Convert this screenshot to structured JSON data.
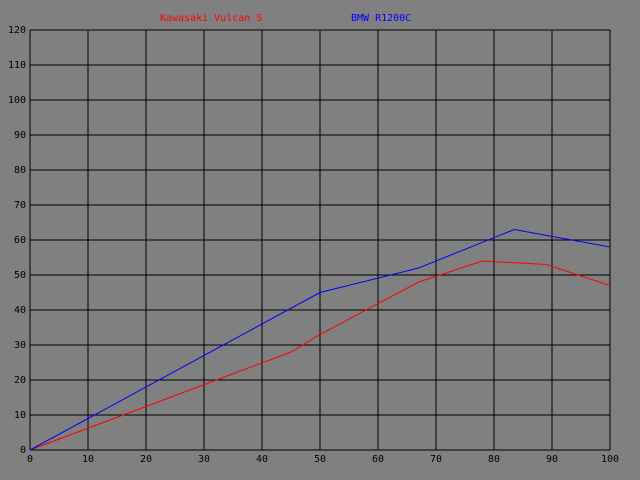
{
  "chart_data": {
    "type": "line",
    "series": [
      {
        "name": "Kawasaki Vulcan S",
        "color": "#ff0000",
        "x": [
          0,
          45,
          50,
          67,
          78,
          89,
          100
        ],
        "values": [
          0,
          28,
          33,
          48,
          54,
          53,
          47
        ]
      },
      {
        "name": "BMW R1200C",
        "color": "#0000ff",
        "x": [
          0,
          50,
          67,
          83.5,
          100
        ],
        "values": [
          0,
          45,
          52,
          63,
          58
        ]
      }
    ],
    "xlim": [
      0,
      100
    ],
    "xticks": [
      0,
      10,
      20,
      30,
      40,
      50,
      60,
      70,
      80,
      90,
      100
    ],
    "ylim": [
      0,
      120
    ],
    "yticks": [
      0,
      10,
      20,
      30,
      40,
      50,
      60,
      70,
      80,
      90,
      100,
      110,
      120
    ],
    "grid": true,
    "background": "#808080",
    "grid_color": "#000000"
  }
}
